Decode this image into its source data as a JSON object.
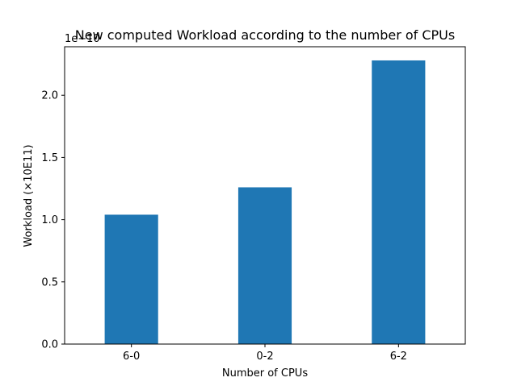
{
  "chart_data": {
    "type": "bar",
    "title": "New computed Workload according to the number of CPUs",
    "xlabel": "Number of CPUs",
    "ylabel": "Workload (×10E11)",
    "offset_text": "1e−10",
    "categories": [
      "6-0",
      "0-2",
      "6-2"
    ],
    "values": [
      1.04,
      1.26,
      2.28
    ],
    "ylim": [
      0,
      2.39
    ],
    "yticks": [
      0.0,
      0.5,
      1.0,
      1.5,
      2.0
    ],
    "ytick_labels": [
      "0.0",
      "0.5",
      "1.0",
      "1.5",
      "2.0"
    ],
    "bar_color": "#1f77b4",
    "grid": false,
    "legend": false
  }
}
